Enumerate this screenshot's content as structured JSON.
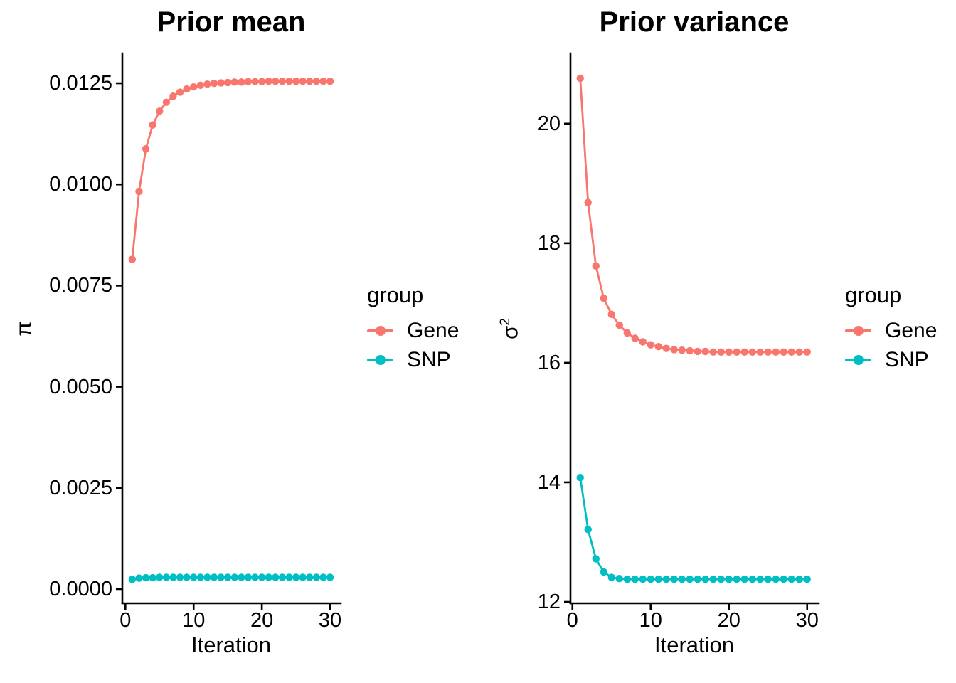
{
  "figure": {
    "background": "#FFFFFF",
    "text_color": "#000000",
    "axis_color": "#000000"
  },
  "chart_data": [
    {
      "type": "line",
      "title": "Prior mean",
      "xlabel": "Iteration",
      "ylabel_base": "π",
      "ylabel_sup": "",
      "grid": false,
      "legend": {
        "title": "group",
        "position": "right"
      },
      "x": [
        1,
        2,
        3,
        4,
        5,
        6,
        7,
        8,
        9,
        10,
        11,
        12,
        13,
        14,
        15,
        16,
        17,
        18,
        19,
        20,
        21,
        22,
        23,
        24,
        25,
        26,
        27,
        28,
        29,
        30
      ],
      "series": [
        {
          "name": "Gene",
          "color": "#F8766D",
          "values": [
            0.00815,
            0.00983,
            0.01088,
            0.01147,
            0.01181,
            0.01203,
            0.01218,
            0.01228,
            0.01236,
            0.01241,
            0.01245,
            0.01248,
            0.0125,
            0.01251,
            0.01252,
            0.01253,
            0.01253,
            0.01254,
            0.01254,
            0.01254,
            0.01255,
            0.01255,
            0.01255,
            0.01255,
            0.01255,
            0.01255,
            0.01255,
            0.01255,
            0.01255,
            0.01255
          ]
        },
        {
          "name": "SNP",
          "color": "#00BFC4",
          "values": [
            0.00024,
            0.00027,
            0.00028,
            0.00028,
            0.00029,
            0.00029,
            0.00029,
            0.00029,
            0.00029,
            0.00029,
            0.00029,
            0.00029,
            0.00029,
            0.00029,
            0.00029,
            0.00029,
            0.00029,
            0.00029,
            0.00029,
            0.00029,
            0.00029,
            0.00029,
            0.00029,
            0.00029,
            0.00029,
            0.00029,
            0.00029,
            0.00029,
            0.00029,
            0.00029
          ]
        }
      ],
      "xlim": [
        -0.45,
        31.56
      ],
      "ylim": [
        -0.000352,
        0.013239
      ],
      "xticks": [
        0,
        10,
        20,
        30
      ],
      "xtick_labels": [
        "0",
        "10",
        "20",
        "30"
      ],
      "yticks": [
        0.0,
        0.0025,
        0.005,
        0.0075,
        0.01,
        0.0125
      ],
      "ytick_labels": [
        "0.0000",
        "0.0025",
        "0.0050",
        "0.0075",
        "0.0100",
        "0.0125"
      ]
    },
    {
      "type": "line",
      "title": "Prior variance",
      "xlabel": "Iteration",
      "ylabel_base": "σ",
      "ylabel_sup": "2",
      "grid": false,
      "legend": {
        "title": "group",
        "position": "right"
      },
      "x": [
        1,
        2,
        3,
        4,
        5,
        6,
        7,
        8,
        9,
        10,
        11,
        12,
        13,
        14,
        15,
        16,
        17,
        18,
        19,
        20,
        21,
        22,
        23,
        24,
        25,
        26,
        27,
        28,
        29,
        30
      ],
      "series": [
        {
          "name": "Gene",
          "color": "#F8766D",
          "values": [
            20.76,
            18.68,
            17.62,
            17.08,
            16.81,
            16.63,
            16.5,
            16.41,
            16.35,
            16.3,
            16.27,
            16.24,
            16.22,
            16.21,
            16.2,
            16.19,
            16.19,
            16.18,
            16.18,
            16.18,
            16.18,
            16.18,
            16.18,
            16.18,
            16.18,
            16.18,
            16.18,
            16.18,
            16.18,
            16.18
          ]
        },
        {
          "name": "SNP",
          "color": "#00BFC4",
          "values": [
            14.08,
            13.21,
            12.72,
            12.5,
            12.41,
            12.39,
            12.38,
            12.38,
            12.38,
            12.38,
            12.38,
            12.38,
            12.38,
            12.38,
            12.38,
            12.38,
            12.38,
            12.38,
            12.38,
            12.38,
            12.38,
            12.38,
            12.38,
            12.38,
            12.38,
            12.38,
            12.38,
            12.38,
            12.38,
            12.38
          ]
        }
      ],
      "xlim": [
        -0.25,
        31.48
      ],
      "ylim": [
        11.976,
        21.176
      ],
      "xticks": [
        0,
        10,
        20,
        30
      ],
      "xtick_labels": [
        "0",
        "10",
        "20",
        "30"
      ],
      "yticks": [
        12,
        14,
        16,
        18,
        20
      ],
      "ytick_labels": [
        "12",
        "14",
        "16",
        "18",
        "20"
      ]
    }
  ]
}
